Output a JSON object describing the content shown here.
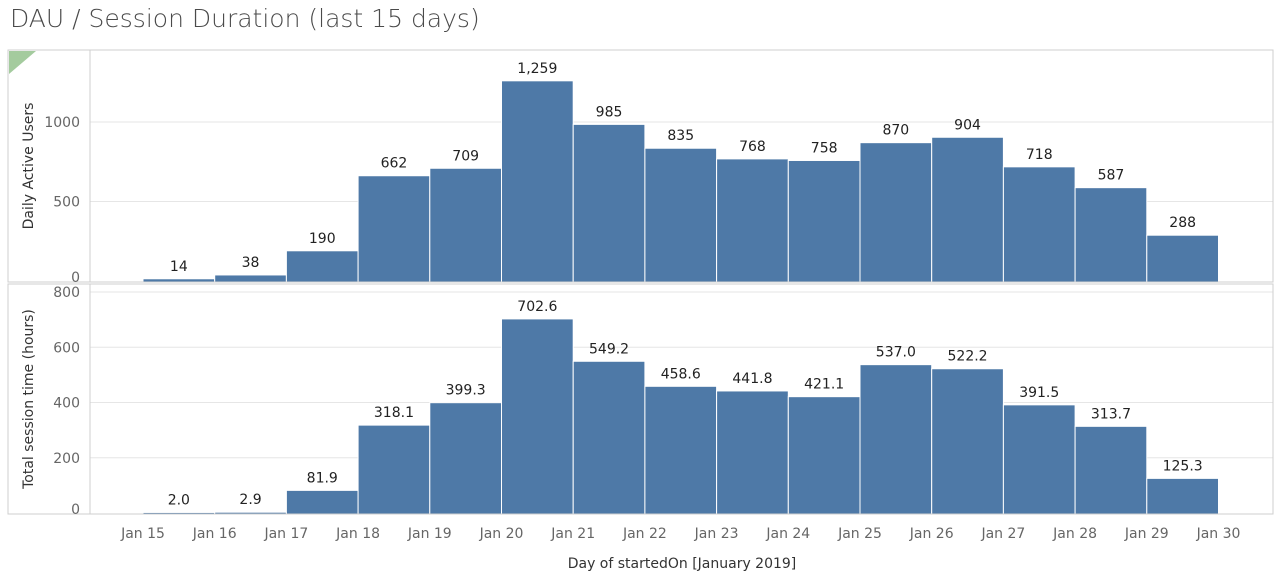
{
  "title": "DAU / Session Duration (last 15 days)",
  "colors": {
    "bar": "#4e79a7",
    "bar_border": "#ffffff",
    "grid": "#e6e6e6",
    "axis": "#cfcfcf",
    "corner_marker": "#59a14f"
  },
  "chart_data": [
    {
      "type": "bar",
      "ylabel": "Daily Active Users",
      "yticks": [
        0,
        500,
        1000
      ],
      "ylim": [
        0,
        1350
      ],
      "grid": true,
      "categories": [
        "Jan 15",
        "Jan 16",
        "Jan 17",
        "Jan 18",
        "Jan 19",
        "Jan 20",
        "Jan 21",
        "Jan 22",
        "Jan 23",
        "Jan 24",
        "Jan 25",
        "Jan 26",
        "Jan 27",
        "Jan 28",
        "Jan 29"
      ],
      "values": [
        14,
        38,
        190,
        662,
        709,
        1259,
        985,
        835,
        768,
        758,
        870,
        904,
        718,
        587,
        288
      ],
      "labels": [
        "14",
        "38",
        "190",
        "662",
        "709",
        "1,259",
        "985",
        "835",
        "768",
        "758",
        "870",
        "904",
        "718",
        "587",
        "288"
      ]
    },
    {
      "type": "bar",
      "ylabel": "Total session time (hours)",
      "yticks": [
        0,
        200,
        400,
        600,
        800
      ],
      "ylim": [
        0,
        800
      ],
      "grid": true,
      "categories": [
        "Jan 15",
        "Jan 16",
        "Jan 17",
        "Jan 18",
        "Jan 19",
        "Jan 20",
        "Jan 21",
        "Jan 22",
        "Jan 23",
        "Jan 24",
        "Jan 25",
        "Jan 26",
        "Jan 27",
        "Jan 28",
        "Jan 29"
      ],
      "values": [
        2.0,
        2.9,
        81.9,
        318.1,
        399.3,
        702.6,
        549.2,
        458.6,
        441.8,
        421.1,
        537.0,
        522.2,
        391.5,
        313.7,
        125.3
      ],
      "labels": [
        "2.0",
        "2.9",
        "81.9",
        "318.1",
        "399.3",
        "702.6",
        "549.2",
        "458.6",
        "441.8",
        "421.1",
        "537.0",
        "522.2",
        "391.5",
        "313.7",
        "125.3"
      ]
    }
  ],
  "x_axis": {
    "label": "Day of startedOn [January 2019]",
    "ticks": [
      "Jan 15",
      "Jan 16",
      "Jan 17",
      "Jan 18",
      "Jan 19",
      "Jan 20",
      "Jan 21",
      "Jan 22",
      "Jan 23",
      "Jan 24",
      "Jan 25",
      "Jan 26",
      "Jan 27",
      "Jan 28",
      "Jan 29",
      "Jan 30"
    ]
  }
}
